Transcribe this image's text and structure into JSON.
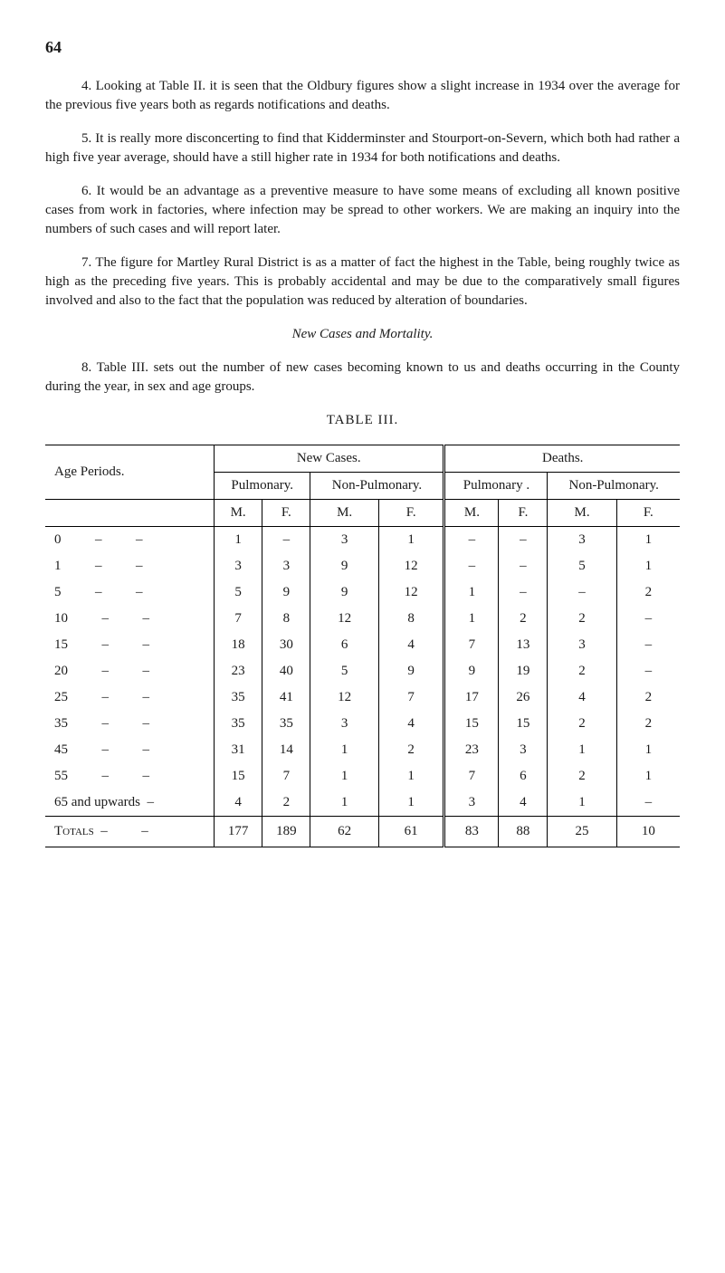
{
  "page_number": "64",
  "paragraphs": {
    "p4": "4. Looking at Table II. it is seen that the Oldbury figures show a slight increase in 1934 over the average for the previous five years both as regards notifications and deaths.",
    "p5": "5. It is really more disconcerting to find that Kidderminster and Stourport-on-Severn, which both had rather a high five year average, should have a still higher rate in 1934 for both notifications and deaths.",
    "p6": "6. It would be an advantage as a preventive measure to have some means of excluding all known positive cases from work in factories, where infection may be spread to other workers. We are making an inquiry into the numbers of such cases and will report later.",
    "p7": "7. The figure for Martley Rural District is as a matter of fact the highest in the Table, being roughly twice as high as the preceding five years. This is probably accidental and may be due to the comparatively small figures involved and also to the fact that the population was reduced by alteration of boundaries.",
    "p8": "8. Table III. sets out the number of new cases becoming known to us and deaths occurring in the County during the year, in sex and age groups."
  },
  "section_title": "New Cases and Mortality.",
  "table_caption": "TABLE III.",
  "table": {
    "main_headers": {
      "age": "Age Periods.",
      "new_cases": "New Cases.",
      "deaths": "Deaths."
    },
    "sub_headers": {
      "pulmonary": "Pulmonary.",
      "non_pulmonary": "Non-Pulmonary.",
      "pulmonary2": "Pulmonary .",
      "non_pulmonary2": "Non-Pulmonary."
    },
    "sex_headers": {
      "m": "M.",
      "f": "F."
    },
    "rows": [
      {
        "age": "0",
        "nc_p_m": "1",
        "nc_p_f": "–",
        "nc_np_m": "3",
        "nc_np_f": "1",
        "d_p_m": "–",
        "d_p_f": "–",
        "d_np_m": "3",
        "d_np_f": "1"
      },
      {
        "age": "1",
        "nc_p_m": "3",
        "nc_p_f": "3",
        "nc_np_m": "9",
        "nc_np_f": "12",
        "d_p_m": "–",
        "d_p_f": "–",
        "d_np_m": "5",
        "d_np_f": "1"
      },
      {
        "age": "5",
        "nc_p_m": "5",
        "nc_p_f": "9",
        "nc_np_m": "9",
        "nc_np_f": "12",
        "d_p_m": "1",
        "d_p_f": "–",
        "d_np_m": "–",
        "d_np_f": "2"
      },
      {
        "age": "10",
        "nc_p_m": "7",
        "nc_p_f": "8",
        "nc_np_m": "12",
        "nc_np_f": "8",
        "d_p_m": "1",
        "d_p_f": "2",
        "d_np_m": "2",
        "d_np_f": "–"
      },
      {
        "age": "15",
        "nc_p_m": "18",
        "nc_p_f": "30",
        "nc_np_m": "6",
        "nc_np_f": "4",
        "d_p_m": "7",
        "d_p_f": "13",
        "d_np_m": "3",
        "d_np_f": "–"
      },
      {
        "age": "20",
        "nc_p_m": "23",
        "nc_p_f": "40",
        "nc_np_m": "5",
        "nc_np_f": "9",
        "d_p_m": "9",
        "d_p_f": "19",
        "d_np_m": "2",
        "d_np_f": "–"
      },
      {
        "age": "25",
        "nc_p_m": "35",
        "nc_p_f": "41",
        "nc_np_m": "12",
        "nc_np_f": "7",
        "d_p_m": "17",
        "d_p_f": "26",
        "d_np_m": "4",
        "d_np_f": "2"
      },
      {
        "age": "35",
        "nc_p_m": "35",
        "nc_p_f": "35",
        "nc_np_m": "3",
        "nc_np_f": "4",
        "d_p_m": "15",
        "d_p_f": "15",
        "d_np_m": "2",
        "d_np_f": "2"
      },
      {
        "age": "45",
        "nc_p_m": "31",
        "nc_p_f": "14",
        "nc_np_m": "1",
        "nc_np_f": "2",
        "d_p_m": "23",
        "d_p_f": "3",
        "d_np_m": "1",
        "d_np_f": "1"
      },
      {
        "age": "55",
        "nc_p_m": "15",
        "nc_p_f": "7",
        "nc_np_m": "1",
        "nc_np_f": "1",
        "d_p_m": "7",
        "d_p_f": "6",
        "d_np_m": "2",
        "d_np_f": "1"
      },
      {
        "age": "65 and upwards",
        "nc_p_m": "4",
        "nc_p_f": "2",
        "nc_np_m": "1",
        "nc_np_f": "1",
        "d_p_m": "3",
        "d_p_f": "4",
        "d_np_m": "1",
        "d_np_f": "–"
      }
    ],
    "totals_label": "Totals",
    "totals": {
      "nc_p_m": "177",
      "nc_p_f": "189",
      "nc_np_m": "62",
      "nc_np_f": "61",
      "d_p_m": "83",
      "d_p_f": "88",
      "d_np_m": "25",
      "d_np_f": "10"
    },
    "dash": "–",
    "range_sep": "–"
  }
}
